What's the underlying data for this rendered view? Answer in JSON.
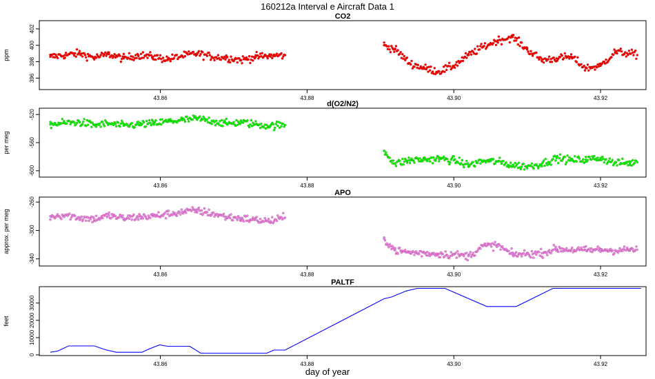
{
  "figure": {
    "title": "160212a   Interval e Aircraft Data 1",
    "xlabel": "day of year"
  },
  "chart_data": [
    {
      "type": "scatter",
      "title": "CO2",
      "ylabel": "ppm",
      "xlim": [
        43.8435,
        43.9262
      ],
      "ylim": [
        394.6,
        403.0
      ],
      "yticks": [
        396,
        398,
        400,
        402
      ],
      "xticks": [
        43.86,
        43.88,
        43.9,
        43.92
      ],
      "xtick_labels": [
        "43.86",
        "43.88",
        "43.90",
        "43.92"
      ],
      "color": "#ff0000",
      "series": [
        {
          "name": "CO2",
          "x": [
            43.845,
            43.847,
            43.849,
            43.851,
            43.853,
            43.855,
            43.857,
            43.859,
            43.861,
            43.863,
            43.865,
            43.867,
            43.869,
            43.871,
            43.873,
            43.875,
            43.877,
            43.8905,
            43.892,
            43.894,
            43.896,
            43.898,
            43.9,
            43.902,
            43.904,
            43.906,
            43.908,
            43.91,
            43.912,
            43.914,
            43.916,
            43.918,
            43.92,
            43.922,
            43.924,
            43.925
          ],
          "y": [
            398.6,
            398.8,
            399.0,
            398.5,
            398.9,
            398.4,
            398.8,
            398.6,
            398.3,
            398.7,
            399.0,
            398.6,
            398.5,
            398.2,
            398.6,
            398.7,
            398.8,
            400.0,
            399.5,
            397.8,
            397.2,
            396.8,
            397.5,
            398.8,
            399.8,
            400.6,
            401.0,
            399.5,
            398.2,
            398.4,
            398.6,
            397.2,
            397.5,
            399.2,
            399.0,
            398.8
          ]
        }
      ]
    },
    {
      "type": "scatter",
      "title": "d(O2/N2)",
      "ylabel": "per meg",
      "xlim": [
        43.8435,
        43.9262
      ],
      "ylim": [
        -609,
        -511
      ],
      "yticks": [
        -520,
        -560,
        -600
      ],
      "xticks": [
        43.86,
        43.88,
        43.9,
        43.92
      ],
      "xtick_labels": [
        "43.86",
        "43.88",
        "43.90",
        "43.92"
      ],
      "color": "#00ff00",
      "series": [
        {
          "name": "d(O2/N2)",
          "x": [
            43.845,
            43.847,
            43.849,
            43.851,
            43.853,
            43.855,
            43.857,
            43.859,
            43.861,
            43.863,
            43.865,
            43.867,
            43.869,
            43.871,
            43.873,
            43.875,
            43.877,
            43.8905,
            43.892,
            43.894,
            43.896,
            43.898,
            43.9,
            43.902,
            43.904,
            43.906,
            43.908,
            43.91,
            43.912,
            43.914,
            43.916,
            43.918,
            43.92,
            43.922,
            43.924,
            43.925
          ],
          "y": [
            -534,
            -532,
            -531,
            -535,
            -533,
            -536,
            -534,
            -533,
            -530,
            -528,
            -526,
            -529,
            -533,
            -531,
            -534,
            -536,
            -535,
            -572,
            -590,
            -585,
            -584,
            -583,
            -585,
            -592,
            -586,
            -587,
            -592,
            -594,
            -590,
            -582,
            -585,
            -584,
            -582,
            -589,
            -589,
            -588
          ]
        }
      ]
    },
    {
      "type": "scatter",
      "title": "APO",
      "ylabel": "approx. per meg",
      "xlim": [
        43.8435,
        43.9262
      ],
      "ylim": [
        -350,
        -253
      ],
      "yticks": [
        -260,
        -300,
        -340
      ],
      "xticks": [
        43.86,
        43.88,
        43.9,
        43.92
      ],
      "xtick_labels": [
        "43.86",
        "43.88",
        "43.90",
        "43.92"
      ],
      "color": "#ee82ee",
      "series": [
        {
          "name": "APO",
          "x": [
            43.845,
            43.847,
            43.849,
            43.851,
            43.853,
            43.855,
            43.857,
            43.859,
            43.861,
            43.863,
            43.865,
            43.867,
            43.869,
            43.871,
            43.873,
            43.875,
            43.877,
            43.8905,
            43.892,
            43.894,
            43.896,
            43.898,
            43.9,
            43.902,
            43.904,
            43.906,
            43.908,
            43.91,
            43.912,
            43.914,
            43.916,
            43.918,
            43.92,
            43.922,
            43.924,
            43.925
          ],
          "y": [
            -280,
            -278,
            -282,
            -284,
            -279,
            -283,
            -281,
            -280,
            -277,
            -274,
            -272,
            -276,
            -281,
            -283,
            -285,
            -287,
            -282,
            -312,
            -328,
            -331,
            -332,
            -333,
            -334,
            -336,
            -322,
            -321,
            -334,
            -333,
            -332,
            -326,
            -327,
            -328,
            -327,
            -328,
            -327,
            -327
          ]
        }
      ]
    },
    {
      "type": "line",
      "title": "PALTF",
      "ylabel": "feet",
      "xlim": [
        43.8435,
        43.9262
      ],
      "ylim": [
        -400,
        39500
      ],
      "yticks": [
        0,
        10000,
        20000,
        30000
      ],
      "xticks": [
        43.86,
        43.88,
        43.9,
        43.92
      ],
      "xtick_labels": [
        "43.86",
        "43.88",
        "43.90",
        "43.92"
      ],
      "color": "#0000ff",
      "series": [
        {
          "name": "PALTF",
          "x": [
            43.845,
            43.846,
            43.8475,
            43.851,
            43.8525,
            43.854,
            43.8575,
            43.8585,
            43.8599,
            43.861,
            43.864,
            43.8655,
            43.8685,
            43.8745,
            43.8755,
            43.877,
            43.8905,
            43.8915,
            43.8935,
            43.895,
            43.8988,
            43.9045,
            43.9085,
            43.9135,
            43.9255
          ],
          "y": [
            1500,
            2200,
            5200,
            5200,
            3000,
            1500,
            1500,
            3500,
            5800,
            5000,
            5000,
            1000,
            1000,
            1000,
            2800,
            2800,
            32500,
            33500,
            37000,
            38500,
            38500,
            28000,
            28000,
            38500,
            38500
          ]
        }
      ]
    }
  ]
}
